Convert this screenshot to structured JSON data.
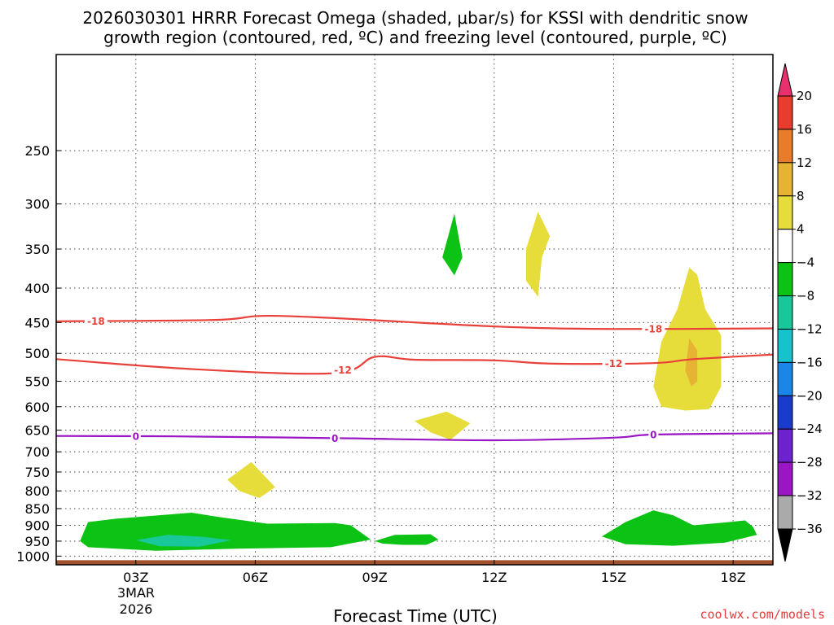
{
  "chart_data": {
    "type": "heatmap",
    "title_line1": "2026030301 HRRR Forecast Omega (shaded, μbar/s) for KSSI with dendritic snow",
    "title_line2": "growth region (contoured, red, ºC) and freezing level (contoured, purple, ºC)",
    "xlabel": "Forecast Time (UTC)",
    "x_range_hours": [
      1,
      19
    ],
    "x_ticks": [
      {
        "hour": 3,
        "label": "03Z"
      },
      {
        "hour": 6,
        "label": "06Z"
      },
      {
        "hour": 9,
        "label": "09Z"
      },
      {
        "hour": 12,
        "label": "12Z"
      },
      {
        "hour": 15,
        "label": "15Z"
      },
      {
        "hour": 18,
        "label": "18Z"
      }
    ],
    "date_label_line1": "3MAR",
    "date_label_line2": "2026",
    "y_range_hpa": [
      1030,
      180
    ],
    "y_ticks": [
      250,
      300,
      350,
      400,
      450,
      500,
      550,
      600,
      650,
      700,
      750,
      800,
      850,
      900,
      950,
      1000
    ],
    "gridlines": true,
    "colorbar": {
      "levels": [
        20,
        16,
        12,
        8,
        4,
        -4,
        -8,
        -12,
        -16,
        -20,
        -24,
        -28,
        -32,
        -36
      ],
      "colors": [
        "#e8306e",
        "#e83c2e",
        "#e87c2a",
        "#e6b432",
        "#e6dc3a",
        "#ffffff",
        "#0cc214",
        "#18c89a",
        "#16c2cc",
        "#1a86e8",
        "#1a3ccc",
        "#6c22cc",
        "#9a16c4",
        "#aaaaaa",
        "#000000"
      ]
    },
    "contours": [
      {
        "name": "dgz-minus-18",
        "color": "#e8413a",
        "label": "-18",
        "points": [
          [
            1,
            448
          ],
          [
            5,
            446
          ],
          [
            6.7,
            440
          ],
          [
            12,
            456
          ],
          [
            15,
            460
          ],
          [
            19,
            459
          ]
        ],
        "label_hours": [
          2,
          16
        ]
      },
      {
        "name": "dgz-minus-12",
        "color": "#e8413a",
        "label": "-12",
        "points": [
          [
            1,
            510
          ],
          [
            4.5,
            528
          ],
          [
            8,
            535
          ],
          [
            9,
            506
          ],
          [
            10,
            511
          ],
          [
            12,
            512
          ],
          [
            13.5,
            518
          ],
          [
            16,
            517
          ],
          [
            17,
            510
          ],
          [
            19,
            502
          ]
        ],
        "label_hours": [
          8.2,
          15
        ]
      },
      {
        "name": "freezing-level-0",
        "color": "#9a16c4",
        "label": "0",
        "points": [
          [
            1,
            663
          ],
          [
            4,
            664
          ],
          [
            8,
            668
          ],
          [
            12,
            673
          ],
          [
            15,
            667
          ],
          [
            16,
            660
          ],
          [
            19,
            657
          ]
        ],
        "label_hours": [
          3,
          8,
          16
        ]
      }
    ],
    "shaded_regions": [
      {
        "name": "lift-green-300",
        "value": -6,
        "points": [
          [
            10.7,
            360
          ],
          [
            11.0,
            310
          ],
          [
            11.2,
            360
          ],
          [
            11.0,
            383
          ]
        ]
      },
      {
        "name": "sink-yellow-300",
        "value": 6,
        "points": [
          [
            12.8,
            390
          ],
          [
            12.8,
            350
          ],
          [
            13.1,
            308
          ],
          [
            13.4,
            335
          ],
          [
            13.2,
            360
          ],
          [
            13.1,
            412
          ]
        ]
      },
      {
        "name": "sink-yellow-450",
        "value": 6,
        "points": [
          [
            16.0,
            560
          ],
          [
            16.2,
            480
          ],
          [
            16.6,
            430
          ],
          [
            16.9,
            373
          ],
          [
            17.1,
            382
          ],
          [
            17.3,
            430
          ],
          [
            17.7,
            470
          ],
          [
            17.7,
            560
          ],
          [
            17.4,
            605
          ],
          [
            16.8,
            608
          ],
          [
            16.2,
            600
          ]
        ]
      },
      {
        "name": "sink-orange-500",
        "value": 10,
        "points": [
          [
            16.8,
            530
          ],
          [
            16.9,
            475
          ],
          [
            17.1,
            495
          ],
          [
            17.1,
            550
          ],
          [
            16.95,
            560
          ]
        ]
      },
      {
        "name": "sink-yellow-620",
        "value": 6,
        "points": [
          [
            10.0,
            630
          ],
          [
            10.8,
            610
          ],
          [
            11.4,
            635
          ],
          [
            10.9,
            672
          ],
          [
            10.4,
            655
          ]
        ]
      },
      {
        "name": "sink-yellow-760",
        "value": 6,
        "points": [
          [
            5.3,
            770
          ],
          [
            5.9,
            725
          ],
          [
            6.5,
            790
          ],
          [
            6.1,
            820
          ],
          [
            5.6,
            800
          ]
        ]
      },
      {
        "name": "lift-green-low-1",
        "value": -6,
        "points": [
          [
            1.6,
            950
          ],
          [
            1.8,
            890
          ],
          [
            2.5,
            880
          ],
          [
            4.4,
            862
          ],
          [
            5.1,
            875
          ],
          [
            6.3,
            895
          ],
          [
            8.0,
            893
          ],
          [
            8.4,
            900
          ],
          [
            8.9,
            945
          ],
          [
            7.9,
            970
          ],
          [
            5.5,
            975
          ],
          [
            3.5,
            982
          ],
          [
            1.8,
            970
          ]
        ]
      },
      {
        "name": "lift-teal-low",
        "value": -10,
        "points": [
          [
            3.0,
            947
          ],
          [
            3.8,
            930
          ],
          [
            4.6,
            935
          ],
          [
            5.4,
            947
          ],
          [
            4.6,
            968
          ],
          [
            3.6,
            967
          ]
        ]
      },
      {
        "name": "lift-green-low-2",
        "value": -6,
        "points": [
          [
            9.0,
            950
          ],
          [
            9.5,
            930
          ],
          [
            10.4,
            928
          ],
          [
            10.6,
            945
          ],
          [
            10.3,
            962
          ],
          [
            9.7,
            962
          ],
          [
            9.2,
            958
          ]
        ]
      },
      {
        "name": "lift-green-low-3",
        "value": -6,
        "points": [
          [
            14.7,
            935
          ],
          [
            15.3,
            890
          ],
          [
            16.0,
            855
          ],
          [
            16.5,
            870
          ],
          [
            17.0,
            900
          ],
          [
            17.9,
            890
          ],
          [
            18.3,
            885
          ],
          [
            18.5,
            905
          ],
          [
            18.6,
            930
          ],
          [
            17.8,
            955
          ],
          [
            16.5,
            965
          ],
          [
            15.3,
            960
          ]
        ]
      }
    ],
    "ground_band_hpa": [
      1014,
      1030
    ]
  },
  "colors": {
    "red_contour": "#e8413a",
    "purple_contour": "#9a16c4",
    "yellow": "#e6dc3a",
    "orange": "#e6b432",
    "green": "#0cc214",
    "teal": "#18c89a",
    "ground": "#a0502a"
  },
  "credit": "coolwx.com/models"
}
